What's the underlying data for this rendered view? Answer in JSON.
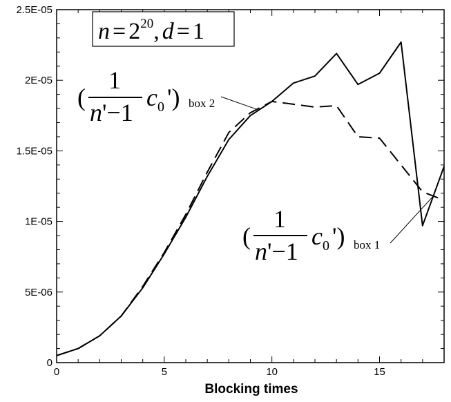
{
  "chart_data": {
    "type": "line",
    "xlabel": "Blocking times",
    "ylabel": "",
    "xlim": [
      0,
      18
    ],
    "ylim": [
      0,
      2.5e-05
    ],
    "x_ticks": [
      0,
      5,
      10,
      15
    ],
    "y_ticks": [
      0,
      5e-06,
      1e-05,
      1.5e-05,
      2e-05,
      2.5e-05
    ],
    "x_tick_labels": [
      "0",
      "5",
      "10",
      "15"
    ],
    "y_tick_labels": [
      "0",
      "5E-06",
      "1E-05",
      "1.5E-05",
      "2E-05",
      "2.5E-05"
    ],
    "grid": false,
    "x": [
      0,
      1,
      2,
      3,
      4,
      5,
      6,
      7,
      8,
      9,
      10,
      11,
      12,
      13,
      14,
      15,
      16,
      17,
      18
    ],
    "series": [
      {
        "id": "box1",
        "style": "solid",
        "color": "#000000",
        "values": [
          5e-07,
          1e-06,
          1.9e-06,
          3.3e-06,
          5.3e-06,
          7.7e-06,
          1.03e-05,
          1.32e-05,
          1.58e-05,
          1.75e-05,
          1.85e-05,
          1.98e-05,
          2.03e-05,
          2.19e-05,
          1.97e-05,
          2.05e-05,
          2.27e-05,
          9.7e-06,
          1.39e-05
        ]
      },
      {
        "id": "box2",
        "style": "dashed",
        "color": "#000000",
        "values": [
          5e-07,
          1e-06,
          1.9e-06,
          3.3e-06,
          5.4e-06,
          7.8e-06,
          1.05e-05,
          1.35e-05,
          1.63e-05,
          1.77e-05,
          1.85e-05,
          1.83e-05,
          1.81e-05,
          1.82e-05,
          1.6e-05,
          1.59e-05,
          1.4e-05,
          1.21e-05,
          1.15e-05
        ]
      }
    ],
    "annotations": {
      "title_box": {
        "n": "n",
        "eq1": "=",
        "base": "2",
        "exp": "20",
        "comma": ",",
        "d": "d",
        "eq2": "=",
        "val": "1"
      },
      "box2_label": {
        "lparen": "(",
        "num": "1",
        "den_n": "n",
        "den_rest": "'−1",
        "c": "c",
        "c_sub": "0",
        "prime_rparen": "')",
        "sub": "box 2",
        "points_to_x": 9.3
      },
      "box1_label": {
        "lparen": "(",
        "num": "1",
        "den_n": "n",
        "den_rest": "'−1",
        "c": "c",
        "c_sub": "0",
        "prime_rparen": "')",
        "sub": "box 1",
        "points_to_x": 17.5
      }
    }
  }
}
